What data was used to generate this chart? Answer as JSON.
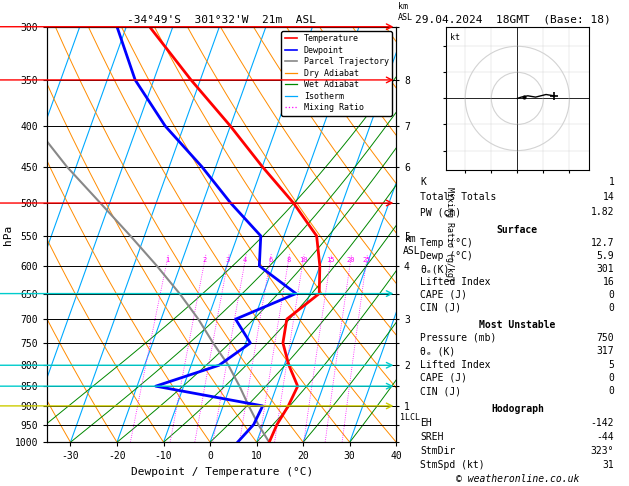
{
  "title_left": "-34°49'S  301°32'W  21m  ASL",
  "title_right": "29.04.2024  18GMT  (Base: 18)",
  "xlabel": "Dewpoint / Temperature (°C)",
  "ylabel_left": "hPa",
  "background_color": "#ffffff",
  "pressure_levels": [
    300,
    350,
    400,
    450,
    500,
    550,
    600,
    650,
    700,
    750,
    800,
    850,
    900,
    950,
    1000
  ],
  "temp_profile_p": [
    1000,
    950,
    900,
    850,
    800,
    750,
    700,
    650,
    600,
    550,
    500,
    450,
    400,
    350,
    300
  ],
  "temp_profile_t": [
    12.7,
    13.0,
    14.0,
    14.5,
    11.0,
    8.0,
    7.0,
    12.0,
    10.0,
    7.0,
    -0.5,
    -10.0,
    -20.0,
    -32.0,
    -45.0
  ],
  "dewp_profile_p": [
    1000,
    950,
    900,
    850,
    800,
    750,
    700,
    650,
    600,
    550,
    500,
    450,
    400,
    350,
    300
  ],
  "dewp_profile_t": [
    5.9,
    8.0,
    8.5,
    -16.0,
    -4.0,
    1.0,
    -4.0,
    7.0,
    -3.0,
    -5.0,
    -14.0,
    -23.0,
    -34.0,
    -44.0,
    -52.0
  ],
  "parcel_profile_p": [
    1000,
    950,
    900,
    850,
    800,
    750,
    700,
    650,
    600,
    550,
    500,
    450,
    400,
    350,
    300
  ],
  "parcel_profile_t": [
    12.7,
    9.0,
    5.5,
    2.0,
    -2.0,
    -7.0,
    -12.0,
    -18.0,
    -25.0,
    -33.0,
    -42.0,
    -52.0,
    -62.0,
    -72.0,
    -82.0
  ],
  "temp_color": "#ff0000",
  "dewp_color": "#0000ff",
  "parcel_color": "#888888",
  "dry_adiabat_color": "#ff8c00",
  "wet_adiabat_color": "#008800",
  "isotherm_color": "#00aaff",
  "mixing_ratio_color": "#ff00ff",
  "temp_lw": 2.0,
  "dewp_lw": 2.0,
  "parcel_lw": 1.5,
  "t_min": -35,
  "t_max": 40,
  "p_min": 300,
  "p_max": 1000,
  "mixing_ratios": [
    1,
    2,
    3,
    4,
    6,
    8,
    10,
    15,
    20,
    25
  ],
  "info_K": 1,
  "info_TT": 14,
  "info_PW": "1.82",
  "surf_temp": "12.7",
  "surf_dewp": "5.9",
  "surf_theta": "301",
  "surf_li": "16",
  "surf_cape": "0",
  "surf_cin": "0",
  "mu_pres": "750",
  "mu_theta": "317",
  "mu_li": "5",
  "mu_cape": "0",
  "mu_cin": "0",
  "hodo_EH": "-142",
  "hodo_SREH": "-44",
  "hodo_StmDir": "323°",
  "hodo_StmSpd": "31",
  "lcl_pressure": 930,
  "footnote": "© weatheronline.co.uk",
  "skew_factor": 32.0,
  "skew_base_p": 1000
}
